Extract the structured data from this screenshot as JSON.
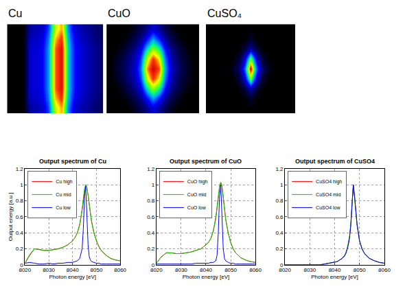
{
  "chart_data": [
    {
      "type": "heatmap",
      "title": "Cu",
      "tick_labels": false,
      "z": [
        [
          0,
          0,
          0,
          0.22,
          0.25,
          0.28,
          0.42,
          0.75,
          0.85,
          0.48,
          0.3,
          0.25,
          0.22,
          0.18,
          0.15
        ],
        [
          0,
          0,
          0,
          0.26,
          0.28,
          0.32,
          0.47,
          0.83,
          0.93,
          0.53,
          0.34,
          0.28,
          0.24,
          0.2,
          0.17
        ],
        [
          0,
          0,
          0,
          0.28,
          0.3,
          0.34,
          0.5,
          0.88,
          0.98,
          0.56,
          0.36,
          0.3,
          0.26,
          0.22,
          0.18
        ],
        [
          0,
          0,
          0,
          0.28,
          0.3,
          0.34,
          0.5,
          0.88,
          0.98,
          0.56,
          0.36,
          0.3,
          0.26,
          0.22,
          0.18
        ],
        [
          0,
          0,
          0,
          0.28,
          0.3,
          0.34,
          0.5,
          0.88,
          0.98,
          0.56,
          0.36,
          0.3,
          0.26,
          0.22,
          0.18
        ],
        [
          0,
          0,
          0,
          0.28,
          0.3,
          0.34,
          0.5,
          0.88,
          0.98,
          0.56,
          0.36,
          0.3,
          0.26,
          0.22,
          0.18
        ],
        [
          0,
          0,
          0,
          0.28,
          0.3,
          0.34,
          0.5,
          0.88,
          0.98,
          0.56,
          0.36,
          0.3,
          0.26,
          0.22,
          0.18
        ],
        [
          0,
          0,
          0,
          0.26,
          0.28,
          0.32,
          0.47,
          0.83,
          0.93,
          0.53,
          0.34,
          0.28,
          0.24,
          0.2,
          0.17
        ],
        [
          0,
          0,
          0,
          0.22,
          0.25,
          0.28,
          0.42,
          0.75,
          0.85,
          0.48,
          0.3,
          0.25,
          0.22,
          0.18,
          0.15
        ]
      ]
    },
    {
      "type": "heatmap",
      "title": "CuO",
      "tick_labels": false,
      "z": [
        [
          0,
          0,
          0,
          0,
          0.05,
          0.12,
          0.2,
          0.3,
          0.22,
          0.12,
          0.05,
          0,
          0,
          0,
          0
        ],
        [
          0,
          0,
          0,
          0.05,
          0.12,
          0.2,
          0.35,
          0.5,
          0.38,
          0.22,
          0.12,
          0.05,
          0,
          0,
          0
        ],
        [
          0,
          0,
          0.05,
          0.12,
          0.2,
          0.3,
          0.55,
          0.72,
          0.6,
          0.35,
          0.2,
          0.12,
          0.05,
          0,
          0
        ],
        [
          0,
          0.05,
          0.1,
          0.18,
          0.25,
          0.4,
          0.75,
          0.92,
          0.8,
          0.45,
          0.25,
          0.15,
          0.08,
          0.03,
          0
        ],
        [
          0,
          0.06,
          0.12,
          0.2,
          0.28,
          0.45,
          0.85,
          1.0,
          0.9,
          0.5,
          0.28,
          0.18,
          0.1,
          0.04,
          0
        ],
        [
          0,
          0.05,
          0.1,
          0.18,
          0.25,
          0.4,
          0.75,
          0.92,
          0.8,
          0.45,
          0.25,
          0.15,
          0.08,
          0.03,
          0
        ],
        [
          0,
          0,
          0.05,
          0.12,
          0.2,
          0.3,
          0.55,
          0.72,
          0.6,
          0.35,
          0.2,
          0.12,
          0.05,
          0,
          0
        ],
        [
          0,
          0,
          0,
          0.05,
          0.12,
          0.2,
          0.35,
          0.5,
          0.38,
          0.22,
          0.12,
          0.05,
          0,
          0,
          0
        ],
        [
          0,
          0,
          0,
          0,
          0.05,
          0.12,
          0.2,
          0.3,
          0.22,
          0.12,
          0.05,
          0,
          0,
          0,
          0
        ]
      ]
    },
    {
      "type": "heatmap",
      "title": "CuSO₄",
      "tick_labels": false,
      "z": [
        [
          0,
          0,
          0,
          0,
          0,
          0,
          0,
          0,
          0,
          0,
          0,
          0,
          0,
          0,
          0
        ],
        [
          0,
          0,
          0,
          0,
          0,
          0,
          0,
          0.08,
          0,
          0,
          0,
          0,
          0,
          0,
          0
        ],
        [
          0,
          0,
          0,
          0,
          0,
          0,
          0.1,
          0.25,
          0.1,
          0,
          0,
          0,
          0,
          0,
          0
        ],
        [
          0,
          0,
          0,
          0,
          0,
          0.08,
          0.3,
          0.7,
          0.3,
          0.08,
          0,
          0,
          0,
          0,
          0
        ],
        [
          0,
          0,
          0,
          0,
          0.05,
          0.15,
          0.45,
          1.0,
          0.45,
          0.15,
          0.05,
          0,
          0,
          0,
          0
        ],
        [
          0,
          0,
          0,
          0,
          0,
          0.08,
          0.3,
          0.7,
          0.3,
          0.08,
          0,
          0,
          0,
          0,
          0
        ],
        [
          0,
          0,
          0,
          0,
          0,
          0,
          0.1,
          0.25,
          0.1,
          0,
          0,
          0,
          0,
          0,
          0
        ],
        [
          0,
          0,
          0,
          0,
          0,
          0,
          0,
          0.08,
          0,
          0,
          0,
          0,
          0,
          0,
          0
        ],
        [
          0,
          0,
          0,
          0,
          0,
          0,
          0,
          0,
          0,
          0,
          0,
          0,
          0,
          0,
          0
        ]
      ]
    },
    {
      "type": "line",
      "title": "Output spectrum of Cu",
      "x_label": "Photon energy [eV]",
      "y_label": "Output energy [a.u.]",
      "xlim": [
        8020,
        8060
      ],
      "xticks": [
        8020,
        8030,
        8040,
        8050,
        8060
      ],
      "ylim": [
        0,
        1.2
      ],
      "yticks": [
        0,
        0.2,
        0.4,
        0.6,
        0.8,
        1,
        1.2
      ],
      "grid": true,
      "legend": "upper left",
      "x": [
        8020,
        8022,
        8024,
        8026,
        8028,
        8030,
        8032,
        8034,
        8036,
        8038,
        8040,
        8041,
        8042,
        8043,
        8044,
        8044.5,
        8045,
        8045.5,
        8046,
        8046.5,
        8047,
        8047.5,
        8048,
        8049,
        8050,
        8051,
        8052,
        8054,
        8056,
        8058,
        8060
      ],
      "series": [
        {
          "name": "Cu high",
          "color": "#ff0000",
          "values": [
            0.02,
            0.12,
            0.2,
            0.19,
            0.18,
            0.18,
            0.19,
            0.2,
            0.22,
            0.25,
            0.3,
            0.34,
            0.4,
            0.5,
            0.68,
            0.8,
            0.93,
            1.0,
            0.97,
            0.88,
            0.76,
            0.64,
            0.54,
            0.4,
            0.3,
            0.23,
            0.18,
            0.12,
            0.08,
            0.06,
            0.05
          ]
        },
        {
          "name": "Cu mid",
          "color": "#00cc00",
          "values": [
            0.02,
            0.13,
            0.2,
            0.19,
            0.18,
            0.18,
            0.19,
            0.2,
            0.22,
            0.25,
            0.3,
            0.34,
            0.4,
            0.51,
            0.7,
            0.82,
            0.95,
            1.0,
            0.96,
            0.87,
            0.75,
            0.63,
            0.53,
            0.39,
            0.3,
            0.23,
            0.18,
            0.12,
            0.08,
            0.06,
            0.05
          ]
        },
        {
          "name": "Cu low",
          "color": "#0000ff",
          "values": [
            0.02,
            0.03,
            0.02,
            0.01,
            0.01,
            0.02,
            0.01,
            0.02,
            0.02,
            0.03,
            0.03,
            0.04,
            0.05,
            0.08,
            0.2,
            0.45,
            0.85,
            0.98,
            0.6,
            0.25,
            0.1,
            0.06,
            0.04,
            0.03,
            0.02,
            0.02,
            0.01,
            0.01,
            0.01,
            0.01,
            0.01
          ]
        }
      ]
    },
    {
      "type": "line",
      "title": "Output spectrum of CuO",
      "x_label": "Photon energy [eV]",
      "xlim": [
        8020,
        8060
      ],
      "xticks": [
        8020,
        8030,
        8040,
        8050,
        8060
      ],
      "ylim": [
        0,
        1.2
      ],
      "yticks": [
        0,
        0.2,
        0.4,
        0.6,
        0.8,
        1,
        1.2
      ],
      "grid": true,
      "legend": "upper left",
      "x": [
        8020,
        8022,
        8024,
        8026,
        8028,
        8030,
        8032,
        8034,
        8036,
        8038,
        8040,
        8041,
        8042,
        8043,
        8044,
        8044.5,
        8045,
        8045.5,
        8046,
        8046.5,
        8047,
        8047.5,
        8048,
        8049,
        8050,
        8051,
        8052,
        8054,
        8056,
        8058,
        8060
      ],
      "series": [
        {
          "name": "CuO high",
          "color": "#ff0000",
          "values": [
            0.02,
            0.1,
            0.15,
            0.15,
            0.14,
            0.14,
            0.15,
            0.16,
            0.18,
            0.2,
            0.25,
            0.28,
            0.33,
            0.42,
            0.58,
            0.7,
            0.85,
            0.97,
            1.03,
            0.98,
            0.85,
            0.7,
            0.57,
            0.4,
            0.28,
            0.2,
            0.15,
            0.09,
            0.06,
            0.04,
            0.03
          ]
        },
        {
          "name": "CuO mid",
          "color": "#00cc00",
          "values": [
            0.02,
            0.1,
            0.15,
            0.15,
            0.14,
            0.14,
            0.15,
            0.16,
            0.18,
            0.2,
            0.25,
            0.28,
            0.33,
            0.43,
            0.6,
            0.72,
            0.87,
            0.98,
            1.03,
            0.97,
            0.84,
            0.69,
            0.56,
            0.4,
            0.28,
            0.2,
            0.15,
            0.09,
            0.06,
            0.04,
            0.03
          ]
        },
        {
          "name": "CuO low",
          "color": "#0000ff",
          "values": [
            0.01,
            0.01,
            0.01,
            0.01,
            0.01,
            0.01,
            0.01,
            0.01,
            0.02,
            0.02,
            0.02,
            0.02,
            0.03,
            0.03,
            0.05,
            0.12,
            0.4,
            0.85,
            1.0,
            0.6,
            0.2,
            0.08,
            0.05,
            0.03,
            0.02,
            0.02,
            0.01,
            0.01,
            0.01,
            0.01,
            0.01
          ]
        }
      ]
    },
    {
      "type": "line",
      "title": "Output spectrum of CuSO4",
      "x_label": "Photon energy [eV]",
      "xlim": [
        8020,
        8060
      ],
      "xticks": [
        8020,
        8030,
        8040,
        8050,
        8060
      ],
      "ylim": [
        0,
        1.2
      ],
      "yticks": [
        0,
        0.2,
        0.4,
        0.6,
        0.8,
        1,
        1.2
      ],
      "grid": true,
      "legend": "upper left",
      "x": [
        8020,
        8022,
        8024,
        8026,
        8028,
        8030,
        8032,
        8034,
        8036,
        8038,
        8040,
        8041,
        8042,
        8043,
        8044,
        8044.5,
        8045,
        8045.5,
        8046,
        8046.5,
        8047,
        8047.5,
        8048,
        8049,
        8050,
        8051,
        8052,
        8054,
        8056,
        8058,
        8060
      ],
      "series": [
        {
          "name": "CuSO4 high",
          "color": "#ff0000",
          "values": [
            0,
            0,
            0,
            0,
            0,
            0,
            0,
            0,
            0.01,
            0.02,
            0.03,
            0.04,
            0.06,
            0.08,
            0.12,
            0.15,
            0.2,
            0.26,
            0.35,
            0.5,
            0.75,
            1.0,
            0.85,
            0.5,
            0.3,
            0.2,
            0.14,
            0.08,
            0.05,
            0.03,
            0.02
          ]
        },
        {
          "name": "CuSO4 mid",
          "color": "#00cc00",
          "values": [
            0,
            0,
            0,
            0,
            0,
            0,
            0,
            0,
            0.01,
            0.02,
            0.03,
            0.04,
            0.06,
            0.08,
            0.12,
            0.15,
            0.2,
            0.27,
            0.36,
            0.52,
            0.77,
            1.0,
            0.84,
            0.5,
            0.3,
            0.2,
            0.14,
            0.08,
            0.05,
            0.03,
            0.02
          ]
        },
        {
          "name": "CuSO4 low",
          "color": "#0000ff",
          "values": [
            0,
            0,
            0,
            0,
            0,
            0,
            0,
            0,
            0.01,
            0.02,
            0.03,
            0.04,
            0.06,
            0.08,
            0.11,
            0.14,
            0.19,
            0.25,
            0.34,
            0.5,
            0.76,
            1.0,
            0.86,
            0.51,
            0.3,
            0.2,
            0.14,
            0.08,
            0.05,
            0.03,
            0.02
          ]
        }
      ]
    }
  ]
}
